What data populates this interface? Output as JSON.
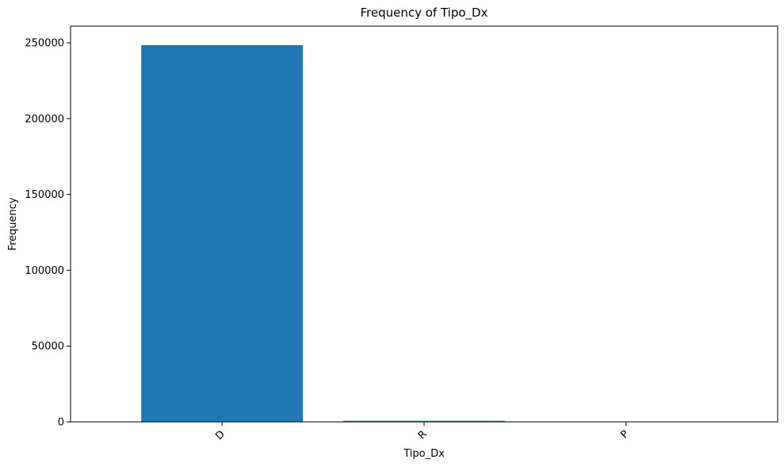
{
  "chart_data": {
    "type": "bar",
    "title": "Frequency of Tipo_Dx",
    "xlabel": "Tipo_Dx",
    "ylabel": "Frequency",
    "categories": [
      "D",
      "R",
      "P"
    ],
    "values": [
      248500,
      700,
      40
    ],
    "ylim": [
      0,
      261000
    ],
    "yticks": [
      0,
      50000,
      100000,
      150000,
      200000,
      250000
    ],
    "ytick_labels": [
      "0",
      "50000",
      "100000",
      "150000",
      "200000",
      "250000"
    ],
    "bar_color": "#1f77b4",
    "grid": false,
    "legend": "none"
  }
}
